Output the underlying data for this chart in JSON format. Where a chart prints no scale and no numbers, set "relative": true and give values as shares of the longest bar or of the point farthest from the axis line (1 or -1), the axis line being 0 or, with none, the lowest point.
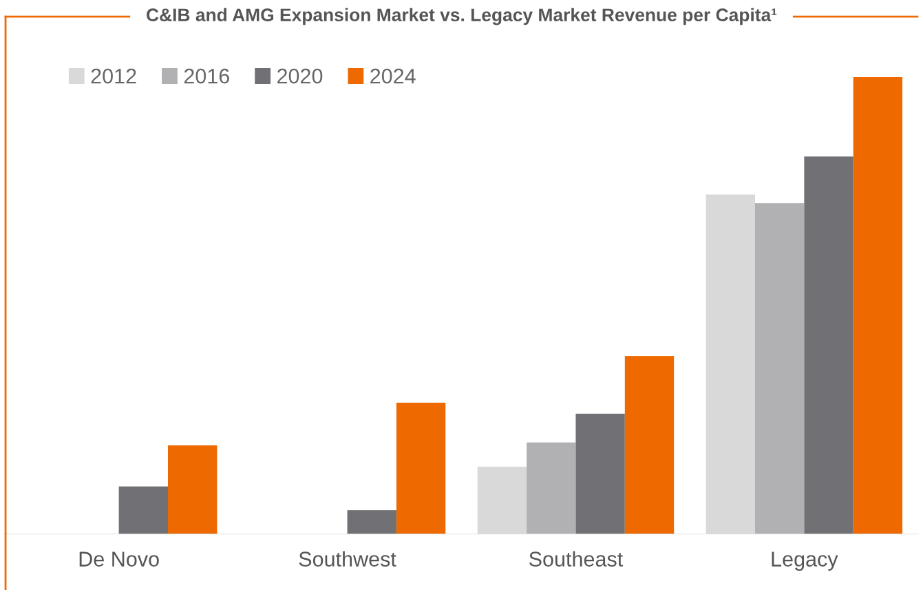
{
  "chart_data": {
    "type": "bar",
    "title": "C&IB and AMG Expansion Market vs. Legacy Market Revenue per Capita¹",
    "categories": [
      "De Novo",
      "Southwest",
      "Southeast",
      "Legacy"
    ],
    "relative": true,
    "legend": "top left",
    "grid": false,
    "series": [
      {
        "name": "2012",
        "color": "#d9d9d9",
        "values": [
          null,
          null,
          0.147,
          0.743
        ]
      },
      {
        "name": "2016",
        "color": "#b1b1b4",
        "values": [
          null,
          null,
          0.2,
          0.724
        ]
      },
      {
        "name": "2020",
        "color": "#717175",
        "values": [
          0.104,
          0.052,
          0.263,
          0.826
        ]
      },
      {
        "name": "2024",
        "color": "#ee6a00",
        "values": [
          0.194,
          0.287,
          0.389,
          1
        ]
      }
    ]
  }
}
